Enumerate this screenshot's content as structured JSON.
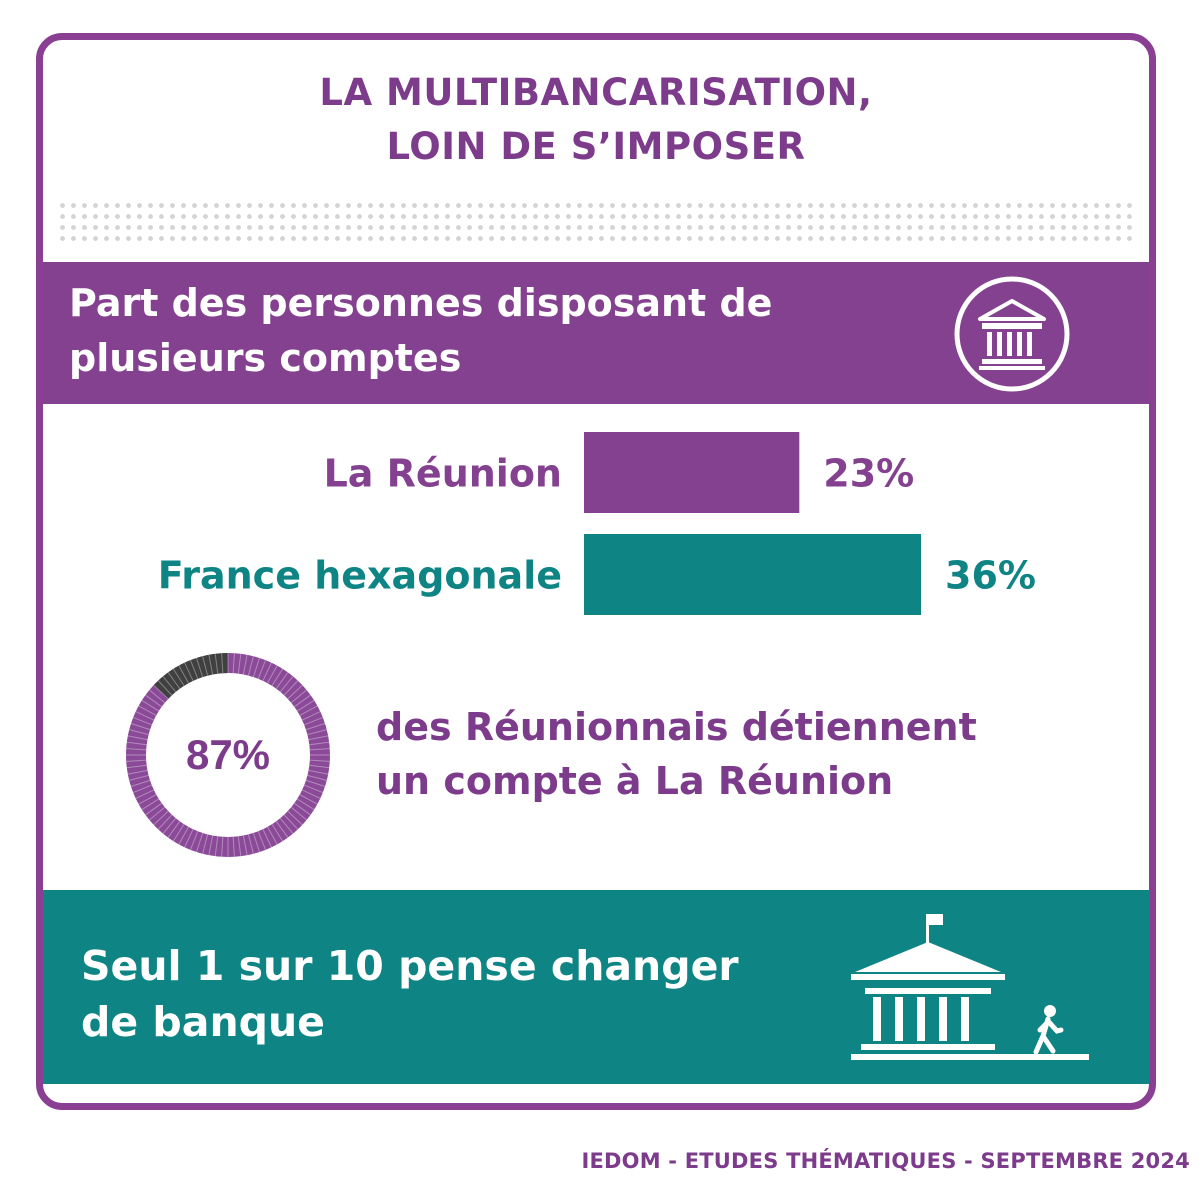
{
  "title": {
    "line1": "LA MULTIBANCARISATION,",
    "line2": "LOIN DE S’IMPOSER"
  },
  "subheading": {
    "line1": "Part des personnes disposant de",
    "line2": "plusieurs comptes"
  },
  "chart_data": [
    {
      "type": "bar",
      "orientation": "horizontal",
      "categories": [
        "La Réunion",
        "France hexagonale"
      ],
      "values": [
        23,
        36
      ],
      "value_labels": [
        "23%",
        "36%"
      ],
      "colors": [
        "#84418f",
        "#0e8584"
      ],
      "unit": "%",
      "xlim": [
        0,
        36
      ]
    },
    {
      "type": "pie",
      "values": [
        87,
        13
      ],
      "center_label": "87%",
      "colors": [
        "#8a4a98",
        "#404040"
      ]
    }
  ],
  "donut_text": {
    "line1": "des Réunionnais détiennent",
    "line2": "un compte à La Réunion"
  },
  "footer": {
    "line1": "Seul 1 sur 10 pense changer",
    "line2": "de banque"
  },
  "source": "IEDOM - ETUDES THÉMATIQUES - SEPTEMBRE 2024",
  "colors": {
    "purple": "#84418f",
    "teal": "#0e8584",
    "dark_segment": "#404040"
  },
  "icons": [
    "bank-icon",
    "bank-building-icon",
    "walking-person-icon",
    "flag-icon"
  ]
}
